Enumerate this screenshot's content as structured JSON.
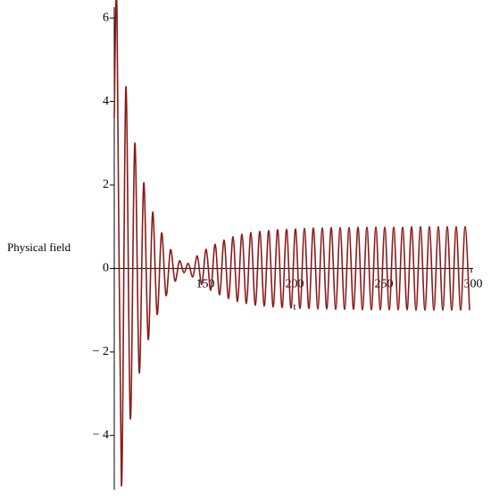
{
  "chart_data": {
    "type": "line",
    "y_label": "Physical field",
    "x_label": "t",
    "x": [
      100,
      101.5,
      104,
      106.5,
      109,
      111.5,
      114,
      116.5,
      119,
      121.5,
      124,
      126.5,
      129,
      131.5,
      134,
      136.5,
      139,
      141.5,
      144,
      146.5,
      149,
      151.5,
      154,
      156.5,
      159,
      161.5,
      164,
      166.5,
      169,
      171.5,
      174,
      176.5,
      179,
      181.5,
      184,
      186.5,
      189,
      191.5,
      194,
      196.5,
      199,
      201.5,
      204,
      206.5,
      209,
      211.5,
      214,
      216.5,
      219,
      221.5,
      224,
      226.5,
      229,
      231.5,
      234,
      236.5,
      239,
      241.5,
      244,
      246.5,
      249,
      251.5,
      254,
      256.5,
      259,
      261.5,
      264,
      266.5,
      269,
      271.5,
      274,
      276.5,
      279,
      281.5,
      284,
      286.5,
      289,
      291.5,
      294,
      296.5,
      299
    ],
    "series": [
      {
        "color": "#8b1a1a",
        "values": [
          3.6,
          6.2,
          -5.2,
          4.35,
          -3.6,
          3.0,
          -2.5,
          2.05,
          -1.7,
          1.35,
          -1.1,
          0.85,
          -0.65,
          0.45,
          -0.3,
          0.18,
          -0.1,
          0.12,
          -0.2,
          0.3,
          -0.38,
          0.46,
          -0.52,
          0.58,
          -0.63,
          0.68,
          -0.72,
          0.76,
          -0.79,
          0.82,
          -0.84,
          0.86,
          -0.88,
          0.89,
          -0.9,
          0.91,
          -0.92,
          0.93,
          -0.94,
          0.94,
          -0.95,
          0.95,
          -0.96,
          0.96,
          -0.96,
          0.97,
          -0.97,
          0.97,
          -0.97,
          0.98,
          -0.98,
          0.98,
          -0.98,
          0.98,
          -0.98,
          0.99,
          -0.99,
          0.99,
          -0.99,
          0.99,
          -0.99,
          0.99,
          -0.99,
          0.99,
          -0.99,
          0.99,
          -0.99,
          1.0,
          -1.0,
          1.0,
          -1.0,
          1.0,
          -1.0,
          1.0,
          -1.0,
          1.0,
          -1.0,
          1.0,
          -1.0,
          1.0,
          -1.0
        ]
      }
    ],
    "xlim": [
      100,
      301
    ],
    "ylim": [
      -5.3,
      6.26
    ],
    "xticks": [
      150,
      200,
      250,
      300
    ],
    "yticks": [
      {
        "value": -4,
        "label": "− 4"
      },
      {
        "value": -2,
        "label": "− 2"
      },
      0,
      2,
      4,
      6
    ]
  }
}
